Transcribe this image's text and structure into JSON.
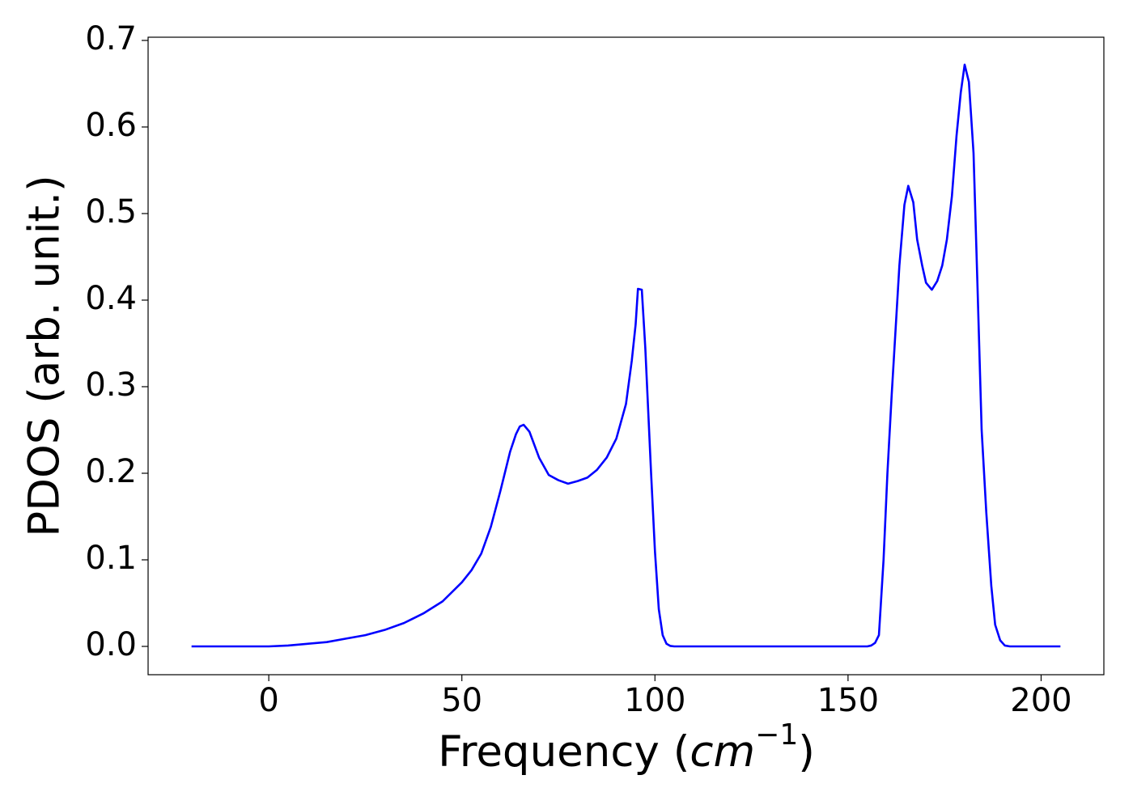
{
  "chart_data": {
    "type": "line",
    "x_label": [
      "Frequency (",
      "cm",
      "−1",
      ")"
    ],
    "y_label": "PDOS (arb. unit.)",
    "x": [
      -20,
      0,
      5,
      10,
      15,
      20,
      25,
      30,
      35,
      40,
      45,
      50,
      52.5,
      55,
      57.5,
      60,
      62.5,
      64,
      65,
      66,
      67.5,
      70,
      72.5,
      75,
      77.5,
      80,
      82.5,
      85,
      87.5,
      90,
      92.5,
      94,
      95,
      95.6,
      96.6,
      97.5,
      99,
      100,
      101,
      102,
      103,
      104,
      105,
      155,
      156,
      157,
      158,
      159.2,
      160.2,
      161.3,
      163.3,
      164.6,
      165.6,
      166.9,
      167.9,
      169.2,
      170.2,
      171.7,
      173.1,
      174.4,
      175.6,
      176.9,
      178.1,
      179.2,
      180.2,
      181.3,
      182.5,
      183.5,
      184.6,
      185.8,
      187.1,
      188.1,
      189.4,
      190.6,
      191.9,
      205
    ],
    "series": [
      {
        "name": "PDOS",
        "color": "#0000ff",
        "values": [
          0,
          0,
          0.001,
          0.003,
          0.005,
          0.009,
          0.013,
          0.019,
          0.027,
          0.038,
          0.052,
          0.074,
          0.088,
          0.107,
          0.138,
          0.18,
          0.225,
          0.245,
          0.254,
          0.256,
          0.248,
          0.218,
          0.198,
          0.192,
          0.188,
          0.191,
          0.195,
          0.204,
          0.218,
          0.24,
          0.28,
          0.33,
          0.372,
          0.413,
          0.412,
          0.345,
          0.2,
          0.11,
          0.043,
          0.013,
          0.003,
          0.0005,
          0,
          0,
          0.001,
          0.004,
          0.013,
          0.1,
          0.2,
          0.29,
          0.44,
          0.51,
          0.532,
          0.513,
          0.47,
          0.44,
          0.42,
          0.412,
          0.422,
          0.44,
          0.47,
          0.52,
          0.59,
          0.64,
          0.672,
          0.652,
          0.57,
          0.42,
          0.25,
          0.155,
          0.07,
          0.025,
          0.007,
          0.001,
          0,
          0
        ]
      }
    ],
    "xlim": [
      -31.25,
      216.25
    ],
    "xticks": [
      0,
      50,
      100,
      150,
      200
    ],
    "ylim": [
      -0.0327,
      0.7037
    ],
    "yticks": [
      {
        "value": 0,
        "label": "0.0"
      },
      0.1,
      0.2,
      0.3,
      0.4,
      0.5,
      0.6,
      0.7
    ],
    "grid": false
  }
}
